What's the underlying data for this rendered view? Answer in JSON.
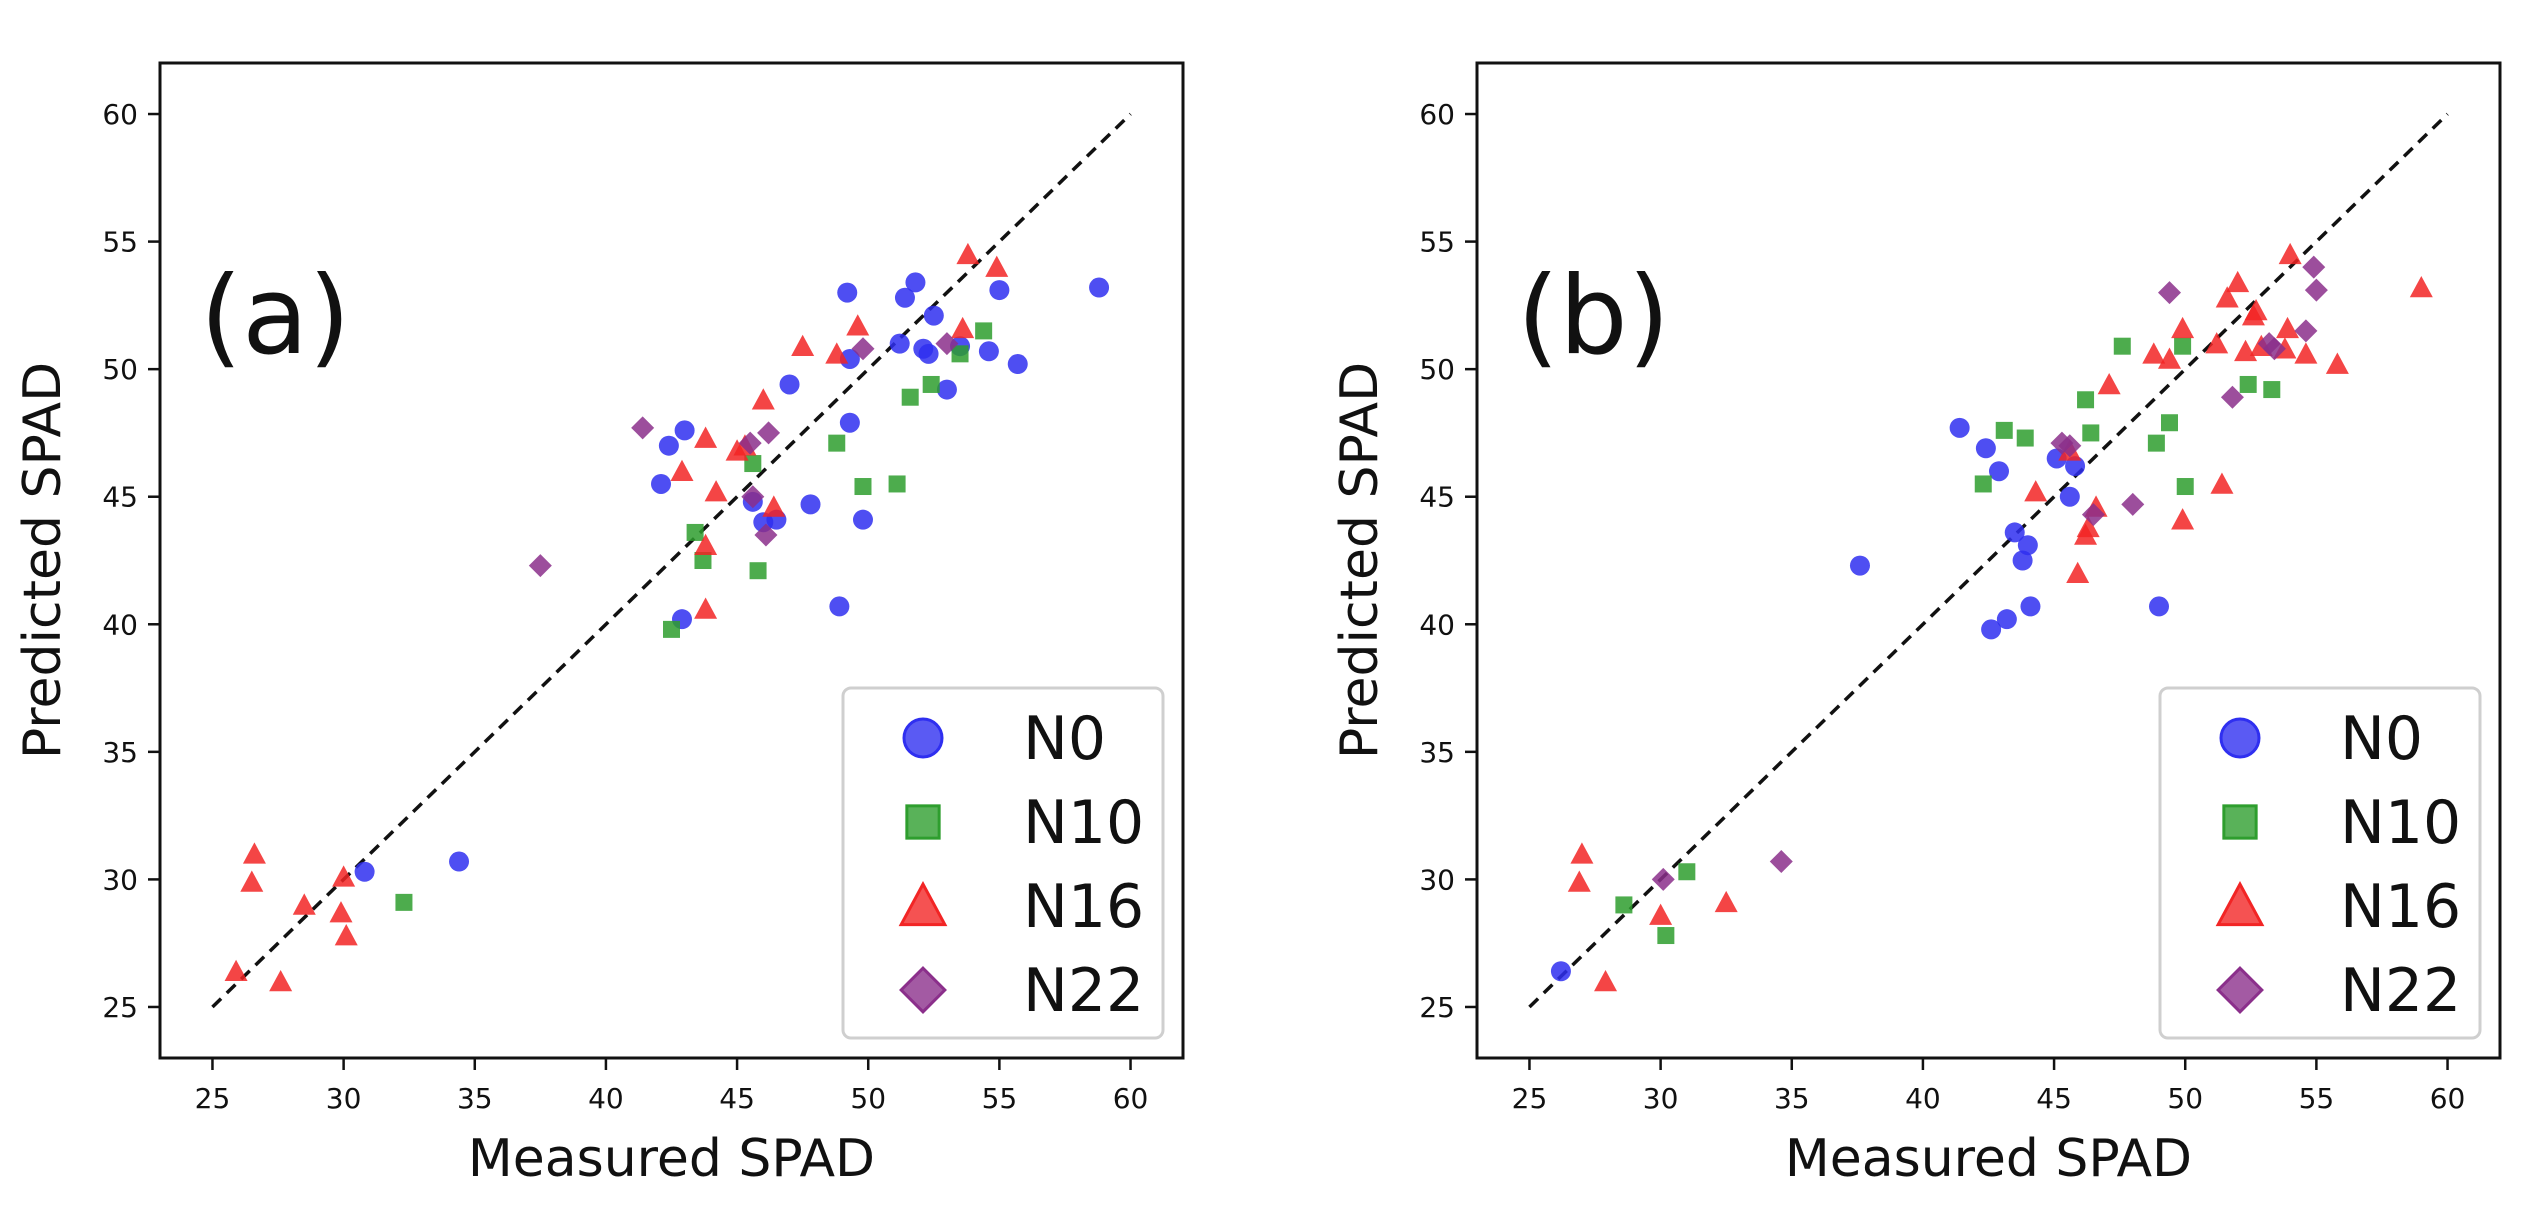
{
  "chart_data": [
    {
      "type": "scatter",
      "panel_label": "(a)",
      "xlabel": "Measured SPAD",
      "ylabel": "Predicted SPAD",
      "xlim": [
        23,
        62
      ],
      "ylim": [
        23,
        62
      ],
      "xticks": [
        "25",
        "30",
        "35",
        "40",
        "45",
        "50",
        "55",
        "60"
      ],
      "yticks": [
        "25",
        "30",
        "35",
        "40",
        "45",
        "50",
        "55",
        "60"
      ],
      "reference_line": {
        "from": [
          25,
          25
        ],
        "to": [
          60,
          60
        ],
        "style": "dashed"
      },
      "legend_position": "bottom-right",
      "series": [
        {
          "name": "N0",
          "marker": "circle",
          "color": "#2f2ff0",
          "points": [
            [
              30.8,
              30.3
            ],
            [
              34.4,
              30.7
            ],
            [
              42.1,
              45.5
            ],
            [
              42.4,
              47.0
            ],
            [
              42.9,
              40.2
            ],
            [
              43.0,
              47.6
            ],
            [
              45.6,
              44.8
            ],
            [
              46.0,
              44.0
            ],
            [
              46.5,
              44.1
            ],
            [
              47.0,
              49.4
            ],
            [
              47.8,
              44.7
            ],
            [
              48.9,
              40.7
            ],
            [
              49.2,
              53.0
            ],
            [
              49.3,
              50.4
            ],
            [
              49.3,
              47.9
            ],
            [
              49.8,
              44.1
            ],
            [
              51.2,
              51.0
            ],
            [
              51.4,
              52.8
            ],
            [
              51.8,
              53.4
            ],
            [
              52.1,
              50.8
            ],
            [
              52.3,
              50.6
            ],
            [
              52.5,
              52.1
            ],
            [
              53.0,
              49.2
            ],
            [
              53.5,
              50.9
            ],
            [
              54.6,
              50.7
            ],
            [
              55.0,
              53.1
            ],
            [
              55.7,
              50.2
            ],
            [
              58.8,
              53.2
            ]
          ]
        },
        {
          "name": "N10",
          "marker": "square",
          "color": "#2e9e2e",
          "points": [
            [
              32.3,
              29.1
            ],
            [
              42.5,
              39.8
            ],
            [
              43.4,
              43.6
            ],
            [
              43.7,
              42.5
            ],
            [
              45.6,
              46.3
            ],
            [
              45.8,
              42.1
            ],
            [
              48.8,
              47.1
            ],
            [
              49.8,
              45.4
            ],
            [
              51.1,
              45.5
            ],
            [
              51.6,
              48.9
            ],
            [
              52.4,
              49.4
            ],
            [
              53.5,
              50.6
            ],
            [
              54.4,
              51.5
            ]
          ]
        },
        {
          "name": "N16",
          "marker": "triangle",
          "color": "#f22525",
          "points": [
            [
              25.9,
              26.4
            ],
            [
              26.5,
              29.9
            ],
            [
              26.6,
              31.0
            ],
            [
              27.6,
              26.0
            ],
            [
              28.5,
              29.0
            ],
            [
              29.9,
              28.7
            ],
            [
              30.0,
              30.1
            ],
            [
              30.1,
              27.8
            ],
            [
              42.9,
              46.0
            ],
            [
              43.8,
              43.1
            ],
            [
              43.8,
              40.6
            ],
            [
              43.8,
              47.3
            ],
            [
              44.2,
              45.2
            ],
            [
              45.0,
              46.8
            ],
            [
              45.3,
              47.0
            ],
            [
              46.0,
              48.8
            ],
            [
              46.4,
              44.6
            ],
            [
              47.5,
              50.9
            ],
            [
              48.8,
              50.6
            ],
            [
              49.6,
              51.7
            ],
            [
              53.6,
              51.6
            ],
            [
              53.8,
              54.5
            ],
            [
              54.9,
              54.0
            ]
          ]
        },
        {
          "name": "N22",
          "marker": "diamond",
          "color": "#8b2f8b",
          "points": [
            [
              37.5,
              42.3
            ],
            [
              41.4,
              47.7
            ],
            [
              45.5,
              47.1
            ],
            [
              45.6,
              45.0
            ],
            [
              46.1,
              43.5
            ],
            [
              46.2,
              47.5
            ],
            [
              49.8,
              50.8
            ],
            [
              53.0,
              51.0
            ]
          ]
        }
      ]
    },
    {
      "type": "scatter",
      "panel_label": "(b)",
      "xlabel": "Measured SPAD",
      "ylabel": "Predicted SPAD",
      "xlim": [
        23,
        62
      ],
      "ylim": [
        23,
        62
      ],
      "xticks": [
        "25",
        "30",
        "35",
        "40",
        "45",
        "50",
        "55",
        "60"
      ],
      "yticks": [
        "25",
        "30",
        "35",
        "40",
        "45",
        "50",
        "55",
        "60"
      ],
      "reference_line": {
        "from": [
          25,
          25
        ],
        "to": [
          60,
          60
        ],
        "style": "dashed"
      },
      "legend_position": "bottom-right",
      "series": [
        {
          "name": "N0",
          "marker": "circle",
          "color": "#2f2ff0",
          "points": [
            [
              26.2,
              26.4
            ],
            [
              37.6,
              42.3
            ],
            [
              41.4,
              47.7
            ],
            [
              42.4,
              46.9
            ],
            [
              42.6,
              39.8
            ],
            [
              42.9,
              46.0
            ],
            [
              43.2,
              40.2
            ],
            [
              43.5,
              43.6
            ],
            [
              43.8,
              42.5
            ],
            [
              44.0,
              43.1
            ],
            [
              44.1,
              40.7
            ],
            [
              45.1,
              46.5
            ],
            [
              45.6,
              45.0
            ],
            [
              45.8,
              46.2
            ],
            [
              49.0,
              40.7
            ]
          ]
        },
        {
          "name": "N10",
          "marker": "square",
          "color": "#2e9e2e",
          "points": [
            [
              28.6,
              29.0
            ],
            [
              30.2,
              27.8
            ],
            [
              31.0,
              30.3
            ],
            [
              42.3,
              45.5
            ],
            [
              43.1,
              47.6
            ],
            [
              43.9,
              47.3
            ],
            [
              46.2,
              48.8
            ],
            [
              46.4,
              47.5
            ],
            [
              47.6,
              50.9
            ],
            [
              48.9,
              47.1
            ],
            [
              49.4,
              47.9
            ],
            [
              49.9,
              50.9
            ],
            [
              50.0,
              45.4
            ],
            [
              52.4,
              49.4
            ],
            [
              53.3,
              49.2
            ]
          ]
        },
        {
          "name": "N16",
          "marker": "triangle",
          "color": "#f22525",
          "points": [
            [
              26.9,
              29.9
            ],
            [
              27.0,
              31.0
            ],
            [
              27.9,
              26.0
            ],
            [
              30.0,
              28.6
            ],
            [
              32.5,
              29.1
            ],
            [
              44.3,
              45.2
            ],
            [
              45.6,
              46.8
            ],
            [
              45.9,
              42.0
            ],
            [
              46.2,
              43.5
            ],
            [
              46.3,
              43.8
            ],
            [
              46.6,
              44.6
            ],
            [
              47.1,
              49.4
            ],
            [
              48.8,
              50.6
            ],
            [
              49.4,
              50.4
            ],
            [
              49.9,
              44.1
            ],
            [
              49.9,
              51.6
            ],
            [
              51.2,
              51.0
            ],
            [
              51.4,
              45.5
            ],
            [
              51.6,
              52.8
            ],
            [
              52.0,
              53.4
            ],
            [
              52.3,
              50.7
            ],
            [
              52.6,
              52.1
            ],
            [
              52.7,
              52.3
            ],
            [
              52.9,
              50.9
            ],
            [
              53.8,
              50.8
            ],
            [
              53.9,
              51.6
            ],
            [
              54.0,
              54.5
            ],
            [
              54.6,
              50.6
            ],
            [
              55.8,
              50.2
            ],
            [
              59.0,
              53.2
            ]
          ]
        },
        {
          "name": "N22",
          "marker": "diamond",
          "color": "#8b2f8b",
          "points": [
            [
              30.1,
              30.0
            ],
            [
              34.6,
              30.7
            ],
            [
              45.3,
              47.1
            ],
            [
              45.6,
              47.0
            ],
            [
              46.5,
              44.3
            ],
            [
              48.0,
              44.7
            ],
            [
              49.4,
              53.0
            ],
            [
              51.8,
              48.9
            ],
            [
              53.2,
              51.0
            ],
            [
              53.4,
              50.8
            ],
            [
              54.6,
              51.5
            ],
            [
              54.9,
              54.0
            ],
            [
              55.0,
              53.1
            ]
          ]
        }
      ]
    }
  ]
}
